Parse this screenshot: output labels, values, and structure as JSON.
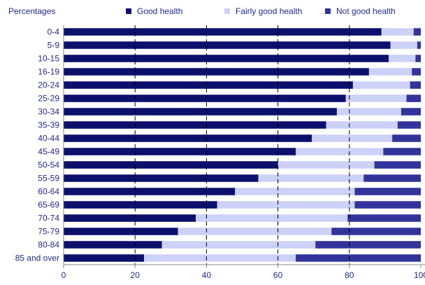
{
  "colors": {
    "good": "#0c0f6c",
    "fairly": "#cdd0f7",
    "not_good": "#32339a",
    "text": "#1f2a8c",
    "axis": "#8a8a8a",
    "grid": "#000000"
  },
  "legend": [
    {
      "key": "good",
      "label": "Good health"
    },
    {
      "key": "fairly",
      "label": "Fairly good health"
    },
    {
      "key": "not_good",
      "label": "Not good health"
    }
  ],
  "chart_data": {
    "type": "bar",
    "orientation": "horizontal",
    "stacked": true,
    "ylabel": "Percentages",
    "xlim": [
      0,
      100
    ],
    "xticks": [
      "0",
      "20",
      "40",
      "60",
      "80",
      "100"
    ],
    "grid": "vertical dashed at 20, 40, 60, 80",
    "legend_position": "top",
    "categories": [
      "0-4",
      "5-9",
      "10-15",
      "16-19",
      "20-24",
      "25-29",
      "30-34",
      "35-39",
      "40-44",
      "45-49",
      "50-54",
      "55-59",
      "60-64",
      "65-69",
      "70-74",
      "75-79",
      "80-84",
      "85 and over"
    ],
    "series": [
      {
        "name": "Good health",
        "values": [
          89,
          91.5,
          91,
          85.5,
          81,
          79,
          76.5,
          73.5,
          69.5,
          65,
          60,
          54.5,
          48,
          43,
          37,
          32,
          27.5,
          22.5
        ]
      },
      {
        "name": "Fairly good health",
        "values": [
          9,
          7.5,
          7.5,
          12,
          16,
          17,
          18,
          20,
          22.5,
          24.5,
          27,
          29.5,
          33.5,
          38.5,
          42.5,
          43,
          43,
          42.5
        ]
      },
      {
        "name": "Not good health",
        "values": [
          2,
          1,
          1.5,
          2.5,
          3,
          4,
          5.5,
          6.5,
          8,
          10.5,
          13,
          16,
          18.5,
          18.5,
          20.5,
          25,
          29.5,
          35
        ]
      }
    ]
  }
}
